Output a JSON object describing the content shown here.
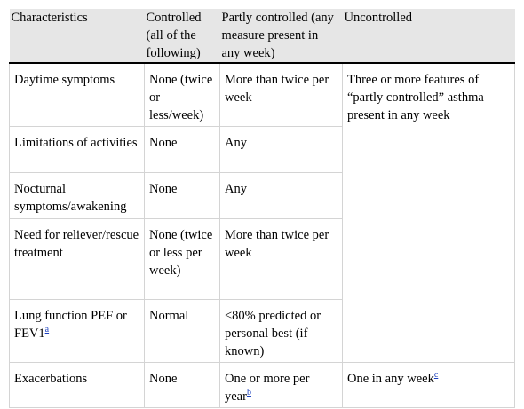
{
  "table": {
    "headers": [
      "Characteristics",
      "Controlled (all of the following)",
      "Partly controlled (any measure present in any week)",
      "Uncontrolled"
    ],
    "rows": [
      {
        "characteristic": "Daytime symptoms",
        "controlled": "None (twice or less/week)",
        "partly": "More than twice per week"
      },
      {
        "characteristic": "Limitations of activities",
        "controlled": "None",
        "partly": "Any"
      },
      {
        "characteristic": "Nocturnal symptoms/awakening",
        "controlled": "None",
        "partly": "Any"
      },
      {
        "characteristic": "Need for reliever/rescue treatment",
        "controlled": "None (twice or less per week)",
        "partly": "More than twice per week"
      },
      {
        "characteristic": "Lung function PEF or FEV1",
        "characteristic_note": "a",
        "controlled": "Normal",
        "partly": "<80% predicted or personal best (if known)"
      },
      {
        "characteristic": "Exacerbations",
        "controlled": "None",
        "partly": "One or more per year",
        "partly_note": "b",
        "uncontrolled": "One in any week",
        "uncontrolled_note": "c"
      }
    ],
    "uncontrolled_merged": "Three or more features of “partly controlled” asthma present in any week"
  }
}
